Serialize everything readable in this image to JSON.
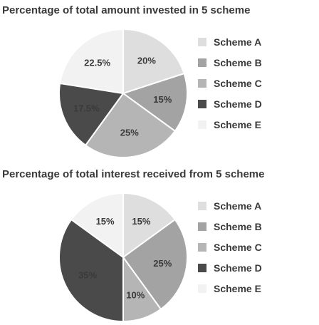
{
  "colors": [
    "#dedede",
    "#a3a3a3",
    "#b5b5b5",
    "#4a4a4a",
    "#f2f2f2"
  ],
  "chart_data": [
    {
      "type": "pie",
      "title": "Percentage of total amount invested in 5 scheme",
      "categories": [
        "Scheme A",
        "Scheme B",
        "Scheme C",
        "Scheme D",
        "Scheme E"
      ],
      "values": [
        20,
        15,
        25,
        17.5,
        22.5
      ],
      "value_labels": [
        "20%",
        "15%",
        "25%",
        "17.5%",
        "22.5%"
      ],
      "legend": "right"
    },
    {
      "type": "pie",
      "title": "Percentage of total interest received from 5 scheme",
      "categories": [
        "Scheme A",
        "Scheme B",
        "Scheme C",
        "Scheme D",
        "Scheme E"
      ],
      "values": [
        15,
        25,
        10,
        35,
        15
      ],
      "value_labels": [
        "15%",
        "25%",
        "10%",
        "35%",
        "15%"
      ],
      "legend": "right"
    }
  ]
}
